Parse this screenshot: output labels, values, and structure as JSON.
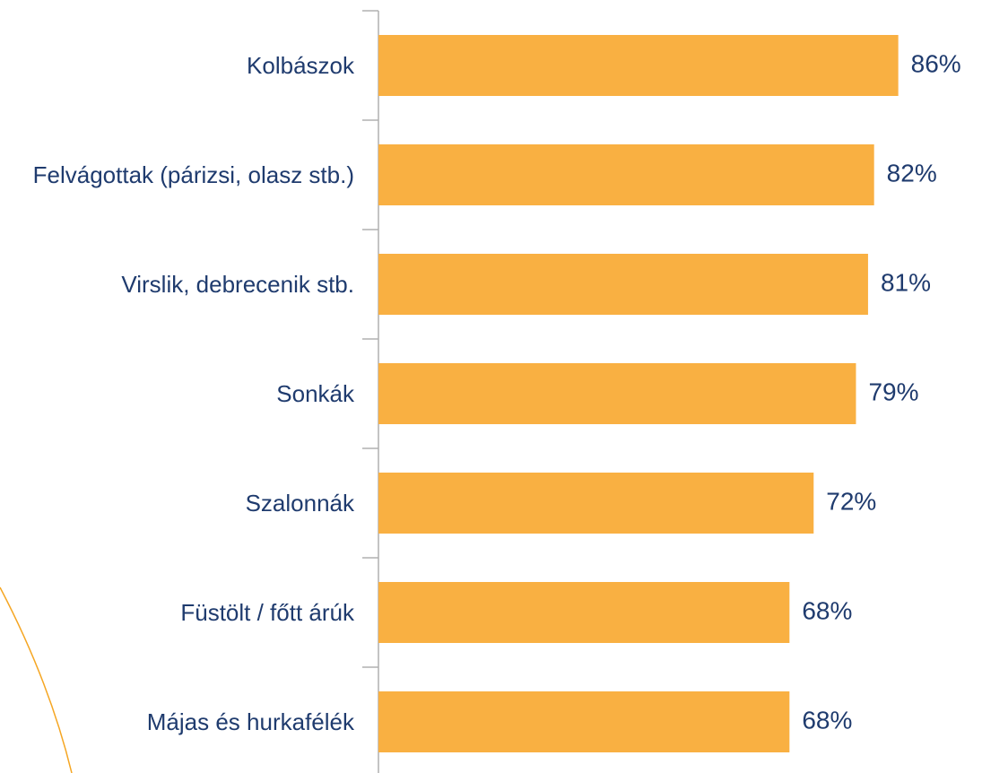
{
  "chart_data": {
    "type": "barh",
    "categories": [
      "Kolbászok",
      "Felvágottak (párizsi, olasz stb.)",
      "Virslik, debrecenik stb.",
      "Sonkák",
      "Szalonnák",
      "Füstölt / főtt árúk",
      "Májas és hurkafélék"
    ],
    "values": [
      86,
      82,
      81,
      79,
      72,
      68,
      68
    ],
    "value_labels": [
      "86%",
      "82%",
      "81%",
      "79%",
      "72%",
      "68%",
      "68%"
    ],
    "color": "#f9b042",
    "xlim": [
      0,
      100
    ]
  }
}
